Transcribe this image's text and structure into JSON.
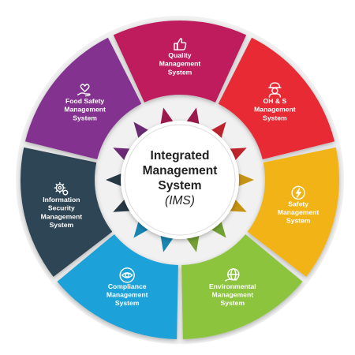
{
  "center": {
    "title_lines": [
      "Integrated",
      "Management",
      "System"
    ],
    "abbreviation": "(IMS)"
  },
  "segments": [
    {
      "name": "quality",
      "lines": [
        "Quality",
        "Management",
        "System"
      ],
      "color": "#be1f5c",
      "icon": "thumbs-up-icon"
    },
    {
      "name": "ohs",
      "lines": [
        "OH & S",
        "Management",
        "System"
      ],
      "color": "#e82c36",
      "icon": "worker-icon"
    },
    {
      "name": "safety",
      "lines": [
        "Safety",
        "Management",
        "System"
      ],
      "color": "#f2b318",
      "icon": "lightning-icon"
    },
    {
      "name": "environmental",
      "lines": [
        "Environmental",
        "Management",
        "System"
      ],
      "color": "#8cc43e",
      "icon": "globe-icon"
    },
    {
      "name": "compliance",
      "lines": [
        "Compliance",
        "Management",
        "System"
      ],
      "color": "#1fa2d8",
      "icon": "eye-icon"
    },
    {
      "name": "infosec",
      "lines": [
        "Information",
        "Security",
        "Management",
        "System"
      ],
      "color": "#2f4554",
      "icon": "gears-icon"
    },
    {
      "name": "foodsafety",
      "lines": [
        "Food Safety",
        "Management",
        "System"
      ],
      "color": "#84338f",
      "icon": "heart-hand-icon"
    }
  ]
}
